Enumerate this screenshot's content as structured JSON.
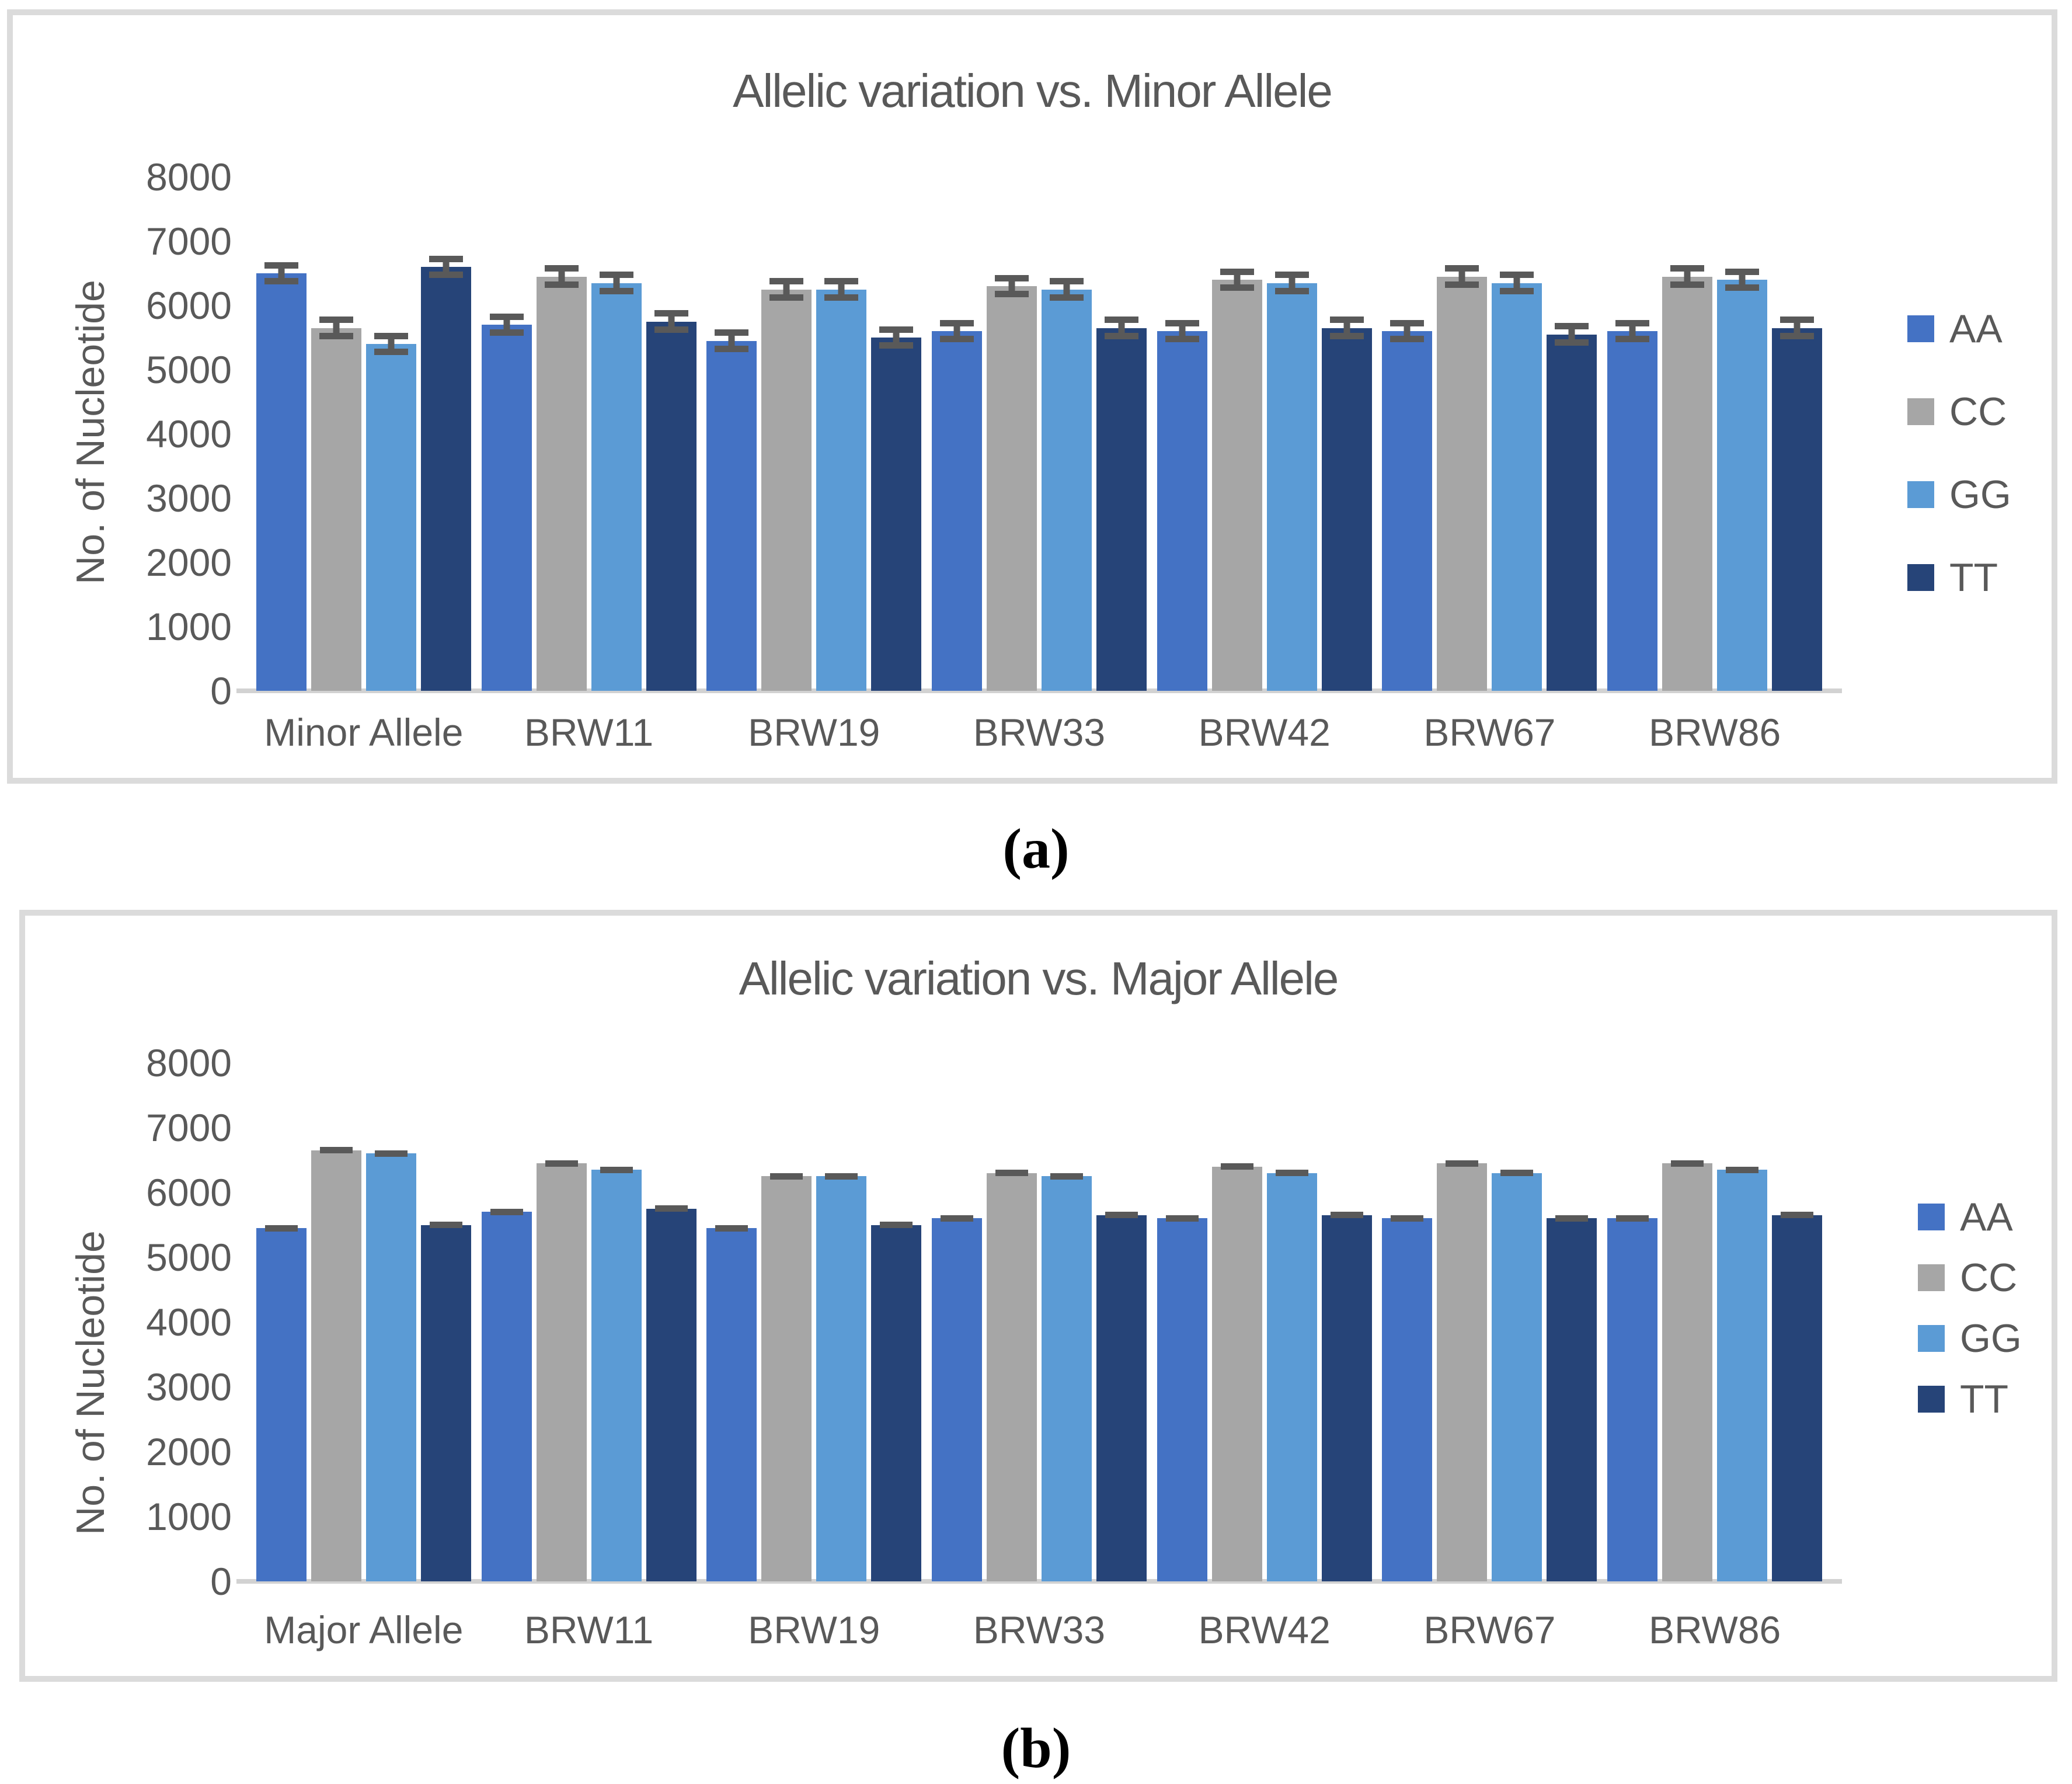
{
  "captions": {
    "a": "(a)",
    "b": "(b)"
  },
  "colors": {
    "text": "#595959",
    "panel_border": "#dbdbdb",
    "axis_line": "#d2d2d2",
    "error_bar": "#595959",
    "series_AA": "#4472C4",
    "series_CC": "#A6A6A6",
    "series_GG": "#5B9BD5",
    "series_TT": "#264478"
  },
  "chart_data": [
    {
      "type": "bar",
      "title": "Allelic variation vs. Minor Allele",
      "xlabel": "",
      "ylabel": "No. of Nucleotide",
      "ylim": [
        0,
        8000
      ],
      "yticks": [
        "0",
        "1000",
        "2000",
        "3000",
        "4000",
        "5000",
        "6000",
        "7000",
        "8000"
      ],
      "grid": false,
      "legend_position": "right",
      "error_bars": true,
      "error_value": 175,
      "categories": [
        "Minor Allele",
        "BRW11",
        "BRW19",
        "BRW33",
        "BRW42",
        "BRW67",
        "BRW86"
      ],
      "series": [
        {
          "name": "AA",
          "color": "#4472C4",
          "values": [
            6500,
            5700,
            5450,
            5600,
            5600,
            5600,
            5600
          ]
        },
        {
          "name": "CC",
          "color": "#A6A6A6",
          "values": [
            5650,
            6450,
            6250,
            6300,
            6400,
            6450,
            6450
          ]
        },
        {
          "name": "GG",
          "color": "#5B9BD5",
          "values": [
            5400,
            6350,
            6250,
            6250,
            6350,
            6350,
            6400
          ]
        },
        {
          "name": "TT",
          "color": "#264478",
          "values": [
            6600,
            5750,
            5500,
            5650,
            5650,
            5550,
            5650
          ]
        }
      ]
    },
    {
      "type": "bar",
      "title": "Allelic variation vs. Major Allele",
      "xlabel": "",
      "ylabel": "No. of Nucleotide",
      "ylim": [
        0,
        8000
      ],
      "yticks": [
        "0",
        "1000",
        "2000",
        "3000",
        "4000",
        "5000",
        "6000",
        "7000",
        "8000"
      ],
      "grid": false,
      "legend_position": "right",
      "error_bars": true,
      "error_value": 40,
      "categories": [
        "Major Allele",
        "BRW11",
        "BRW19",
        "BRW33",
        "BRW42",
        "BRW67",
        "BRW86"
      ],
      "series": [
        {
          "name": "AA",
          "color": "#4472C4",
          "values": [
            5450,
            5700,
            5450,
            5600,
            5600,
            5600,
            5600
          ]
        },
        {
          "name": "CC",
          "color": "#A6A6A6",
          "values": [
            6650,
            6450,
            6250,
            6300,
            6400,
            6450,
            6450
          ]
        },
        {
          "name": "GG",
          "color": "#5B9BD5",
          "values": [
            6600,
            6350,
            6250,
            6250,
            6300,
            6300,
            6350
          ]
        },
        {
          "name": "TT",
          "color": "#264478",
          "values": [
            5500,
            5750,
            5500,
            5650,
            5650,
            5600,
            5650
          ]
        }
      ]
    }
  ]
}
